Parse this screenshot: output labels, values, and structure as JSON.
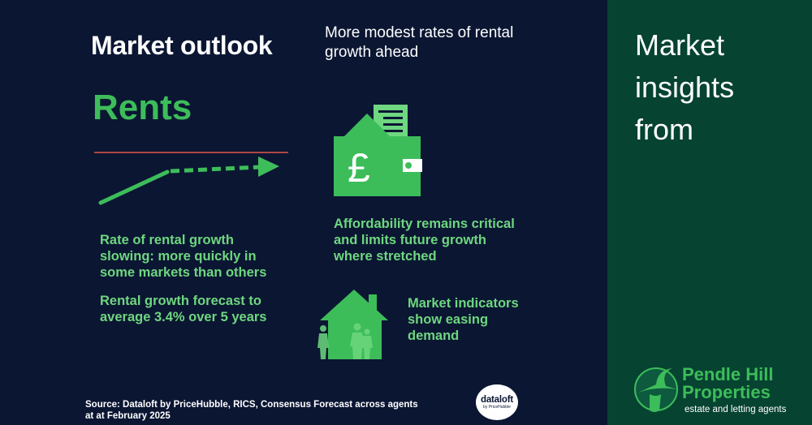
{
  "main": {
    "title": "Market outlook",
    "subtitle": "More modest rates of rental growth ahead",
    "section_heading": "Rents",
    "points": {
      "rental_slowing": "Rate of rental growth slowing: more quickly in some markets than others",
      "forecast": "Rental growth forecast to average 3.4% over 5 years",
      "affordability": "Affordability remains critical and limits future growth where stretched",
      "indicators": "Market indicators show easing demand"
    },
    "source": "Source: Dataloft by PriceHubble, RICS, Consensus Forecast across agents at at February 2025",
    "dataloft_logo": {
      "name": "dataloft",
      "by": "by PriceHubble"
    }
  },
  "side": {
    "heading_line1": "Market",
    "heading_line2": "insights",
    "heading_line3": "from",
    "brand": {
      "name_line1": "Pendle Hill",
      "name_line2": "Properties",
      "tagline": "estate and letting agents"
    }
  },
  "icons": {
    "wallet": "wallet-pound-icon",
    "house": "house-people-icon",
    "arrow": "trend-arrow-icon",
    "logo": "pendle-hill-witch-logo"
  },
  "colors": {
    "background": "#0b1633",
    "side_panel": "#064331",
    "accent_green": "#3dbd5a",
    "text_green": "#6ed77f",
    "reference_line": "#e4574a"
  }
}
